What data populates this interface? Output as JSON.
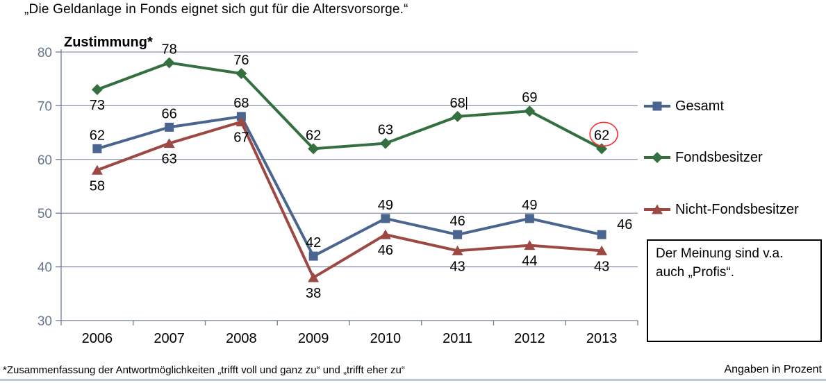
{
  "page": {
    "title": "„Die Geldanlage in Fonds eignet sich gut für die Altersvorsorge.“",
    "footnote": "*Zusammenfassung der Antwortmöglichkeiten „trifft voll und ganz zu“ und „trifft eher zu“",
    "units_note": "Angaben in Prozent"
  },
  "note_box": {
    "text": "Der Meinung sind v.a. auch „Profis“."
  },
  "chart_data": {
    "type": "line",
    "title": "Zustimmung*",
    "xlabel": "",
    "ylabel": "",
    "categories": [
      "2006",
      "2007",
      "2008",
      "2009",
      "2010",
      "2011",
      "2012",
      "2013"
    ],
    "series": [
      {
        "name": "Gesamt",
        "color": "#4A6690",
        "marker": "square",
        "values": [
          62,
          66,
          68,
          42,
          49,
          46,
          49,
          46
        ],
        "label_placement": [
          "above",
          "above",
          "above",
          "above",
          "above",
          "above",
          "above",
          "right"
        ]
      },
      {
        "name": "Fondsbesitzer",
        "color": "#346F40",
        "marker": "diamond",
        "values": [
          73,
          78,
          76,
          62,
          63,
          68,
          69,
          62
        ],
        "label_placement": [
          "below",
          "above",
          "above",
          "above",
          "above",
          "above",
          "above",
          "above"
        ]
      },
      {
        "name": "Nicht-Fondsbesitzer",
        "color": "#9E4843",
        "marker": "triangle",
        "values": [
          58,
          63,
          67,
          38,
          46,
          43,
          44,
          43
        ],
        "label_placement": [
          "below",
          "below",
          "below",
          "below",
          "below",
          "below",
          "below",
          "below"
        ]
      }
    ],
    "ylim": [
      30,
      80
    ],
    "yticks": [
      30,
      40,
      50,
      60,
      70,
      80
    ],
    "grid": true,
    "axis_color": "#6E7B91",
    "legend_position": "right",
    "annotations": {
      "circled_point": {
        "series": "Fondsbesitzer",
        "category": "2013",
        "value": 62,
        "circle_color": "#FF2A2A"
      },
      "text_cursor_after_label": {
        "series": "Fondsbesitzer",
        "category": "2011"
      }
    }
  }
}
